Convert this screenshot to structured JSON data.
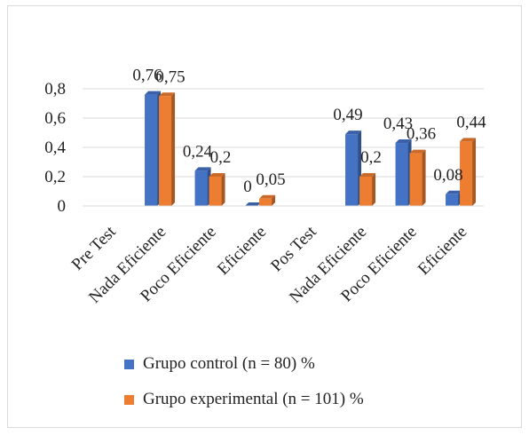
{
  "chart_data": {
    "type": "bar",
    "categories": [
      "Pre Test",
      "Nada Eficiente",
      "Poco Eficiente",
      "Eficiente",
      "Pos Test",
      "Nada Eficiente",
      "Poco Eficiente",
      "Eficiente"
    ],
    "series": [
      {
        "name": "Grupo control (n = 80) %",
        "values": [
          null,
          0.76,
          0.24,
          0.0,
          null,
          0.49,
          0.43,
          0.08
        ],
        "labels": [
          "",
          "0,76",
          "0,24",
          "0",
          "",
          "0,49",
          "0,43",
          "0,08"
        ],
        "color": "#4472c4"
      },
      {
        "name": "Grupo experimental (n = 101) %",
        "values": [
          null,
          0.75,
          0.2,
          0.05,
          null,
          0.2,
          0.36,
          0.44
        ],
        "labels": [
          "",
          "0,75",
          "0,2",
          "0,05",
          "",
          "0,2",
          "0,36",
          "0,44"
        ],
        "color": "#ed7d31"
      }
    ],
    "y_ticks": [
      "0",
      "0,2",
      "0,4",
      "0,6",
      "0,8"
    ],
    "ylim": [
      0,
      0.8
    ],
    "grid": true,
    "legend_position": "bottom"
  }
}
